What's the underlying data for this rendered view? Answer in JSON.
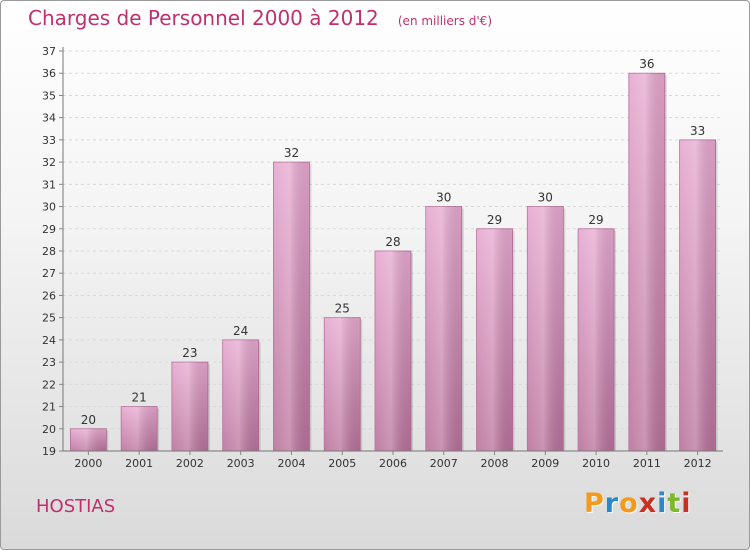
{
  "title": "Charges de Personnel 2000 à 2012",
  "unit_note": "(en milliers d'€)",
  "commune": "HOSTIAS",
  "logo": {
    "letters": [
      "P",
      "r",
      "o",
      "x",
      "i",
      "t",
      "i"
    ],
    "colors": [
      "#f39a1d",
      "#2a88c8",
      "#f39a1d",
      "#c83020",
      "#2a88c8",
      "#7cb82a",
      "#c83020"
    ]
  },
  "colors": {
    "accent": "#c0306f",
    "bar": "#c77ba6",
    "bar_light": "#e6a8cf",
    "grid": "#d9d9d9"
  },
  "chart_data": {
    "type": "bar",
    "categories": [
      "2000",
      "2001",
      "2002",
      "2003",
      "2004",
      "2005",
      "2006",
      "2007",
      "2008",
      "2009",
      "2010",
      "2011",
      "2012"
    ],
    "values": [
      20,
      21,
      23,
      24,
      32,
      25,
      28,
      30,
      29,
      30,
      29,
      36,
      33
    ],
    "ylim": [
      19,
      37
    ],
    "yticks": [
      19,
      20,
      21,
      22,
      23,
      24,
      25,
      26,
      27,
      28,
      29,
      30,
      31,
      32,
      33,
      34,
      35,
      36,
      37
    ],
    "grid": true,
    "title": "Charges de Personnel 2000 à 2012",
    "xlabel": "",
    "ylabel": ""
  }
}
